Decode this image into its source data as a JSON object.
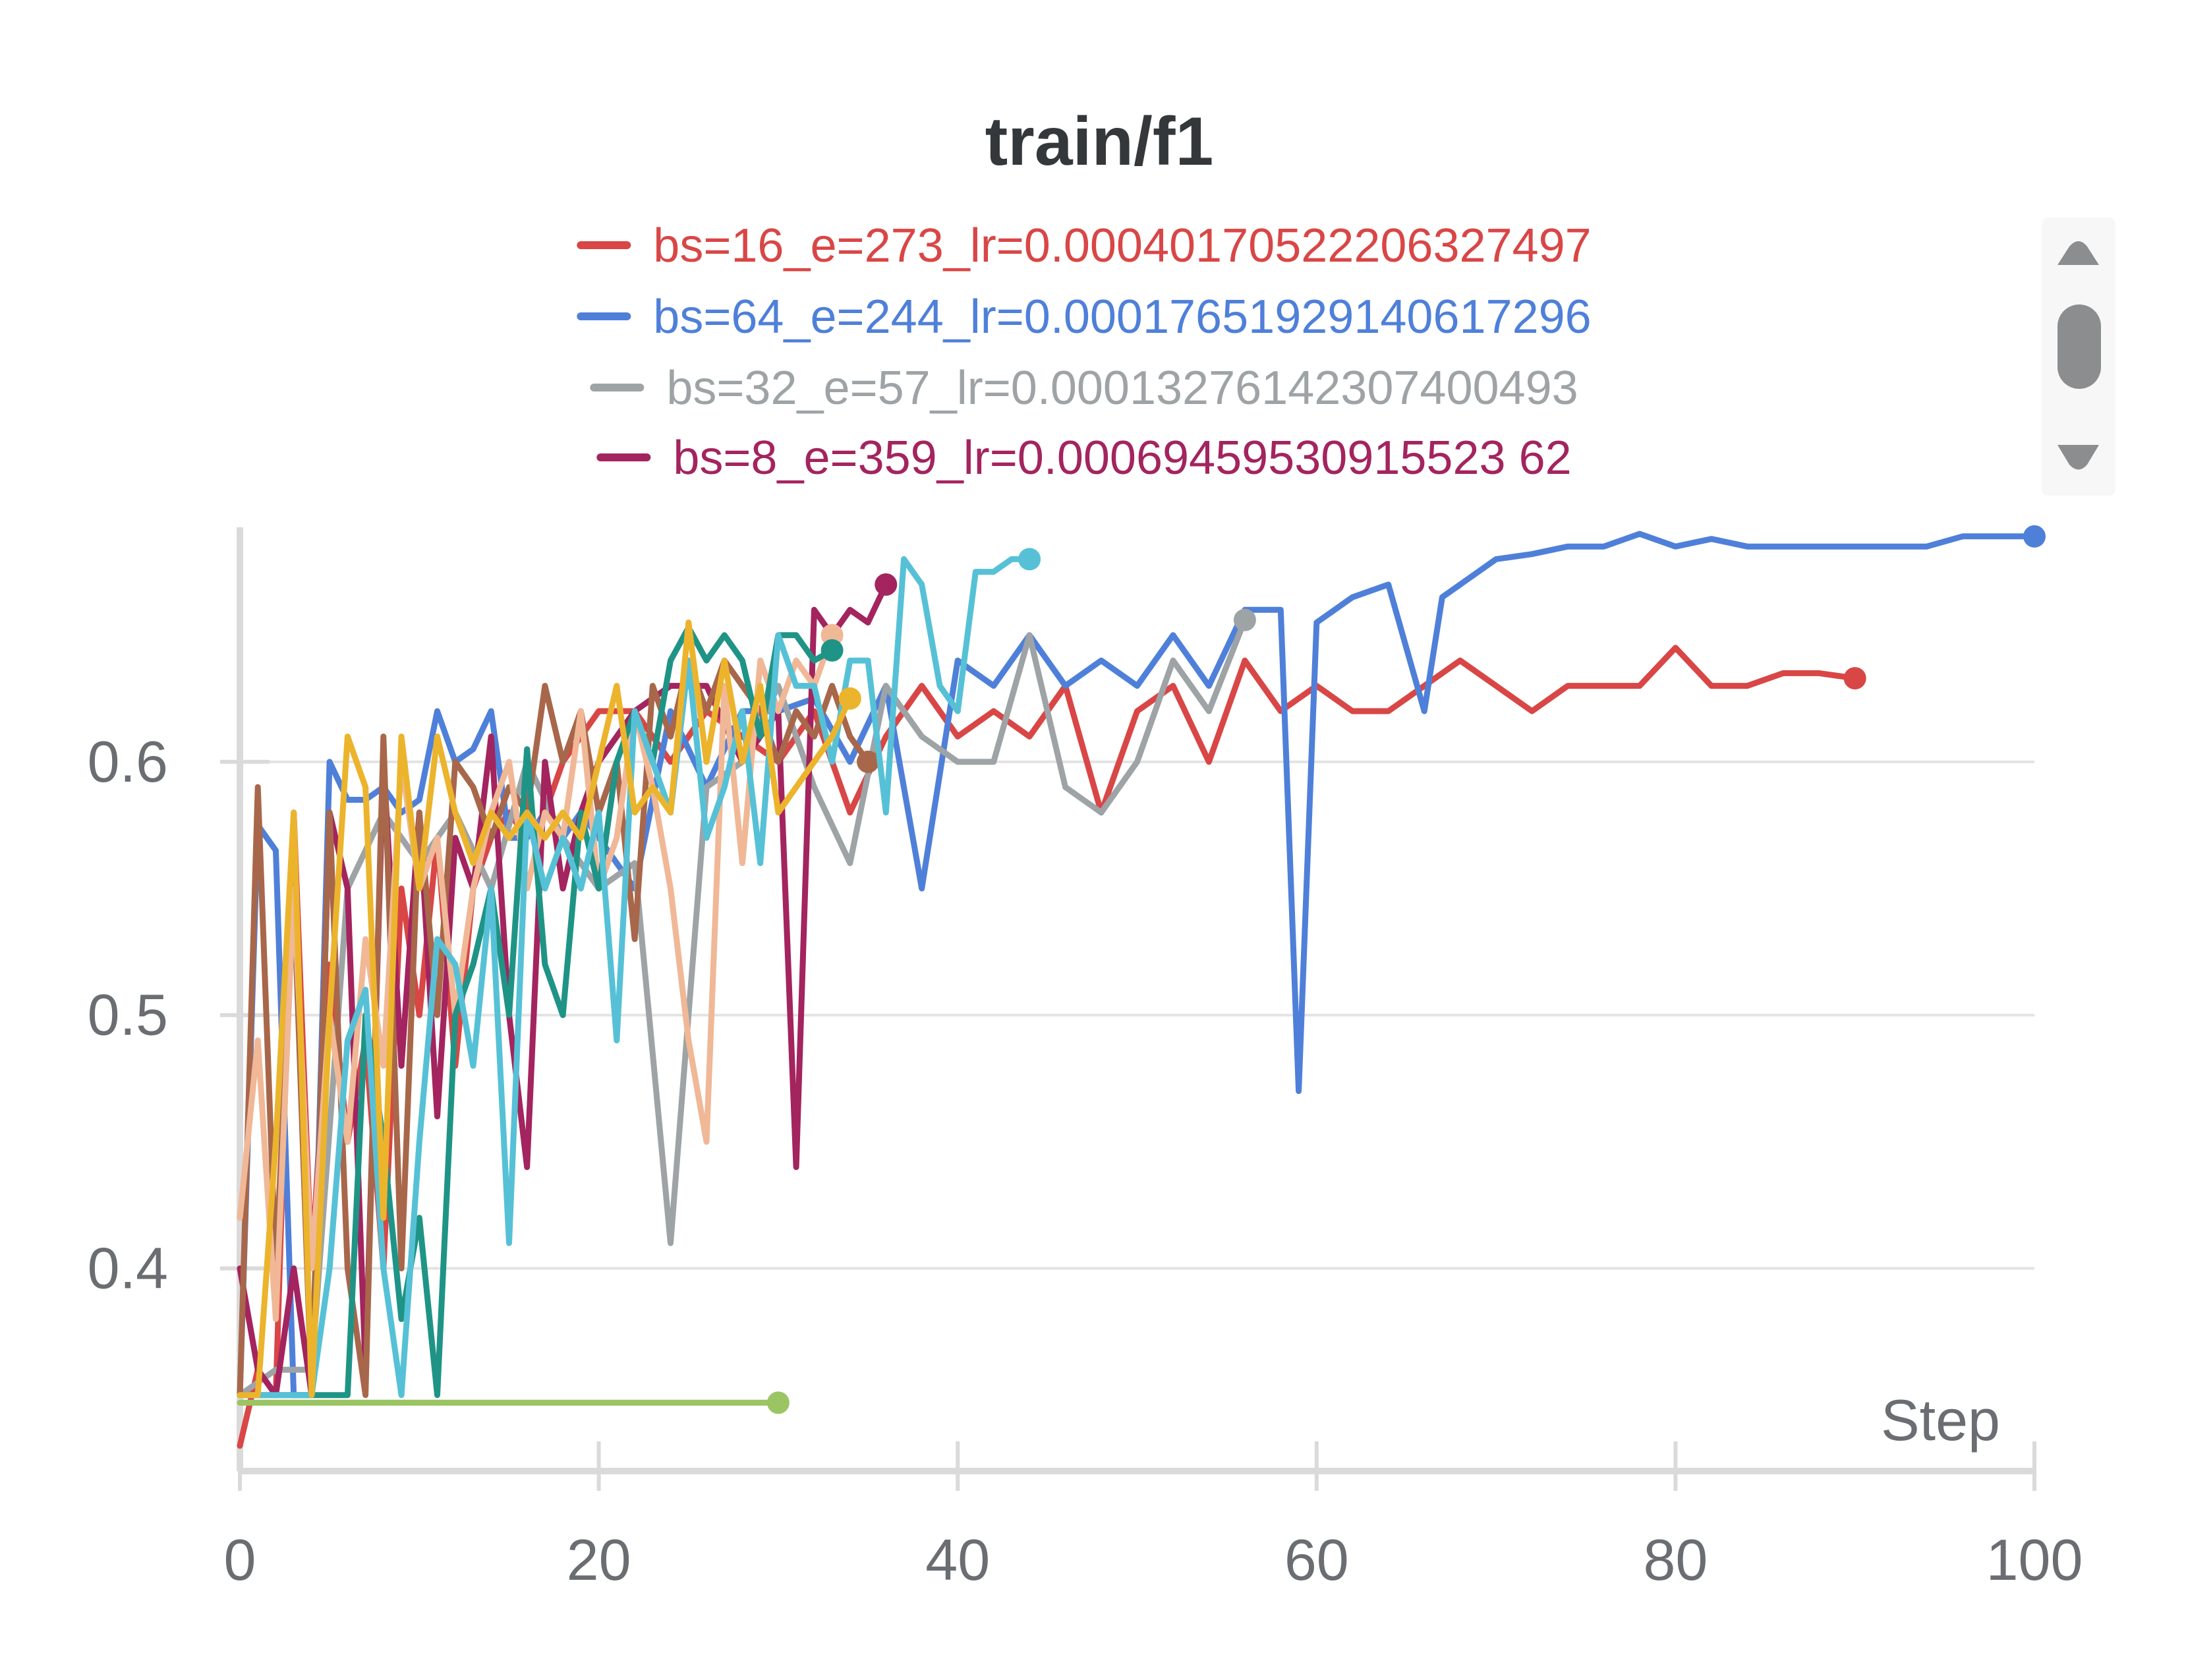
{
  "chart_data": {
    "type": "line",
    "title": "train/f1",
    "xlabel": "Step",
    "ylabel": "",
    "xlim": [
      0,
      100
    ],
    "ylim": [
      0.32,
      0.69
    ],
    "x_ticks": [
      "0",
      "20",
      "40",
      "60",
      "80",
      "100"
    ],
    "x_tick_values": [
      0,
      20,
      40,
      60,
      80,
      100
    ],
    "y_ticks": [
      "0.4",
      "0.5",
      "0.6"
    ],
    "y_tick_values": [
      0.4,
      0.5,
      0.6
    ],
    "grid": "horizontal",
    "legend_position": "top",
    "legend": [
      {
        "label": "bs=16_e=273_lr=0.0004017052220632749​7",
        "color": "#d94646"
      },
      {
        "label": "bs=64_e=244_lr=0.00017651929140617296",
        "color": "#4f80d9"
      },
      {
        "label": "bs=32_e=57_lr=0.00013276142307400493",
        "color": "#9ea3a6"
      },
      {
        "label": "bs=8_e=359_lr=0.00069459530915523 62",
        "color": "#a3245e"
      }
    ],
    "series": [
      {
        "name": "bs=16_e=273_lr=0.00040170522206327497",
        "color": "#d94646",
        "x": [
          0,
          1,
          2,
          3,
          4,
          5,
          6,
          7,
          8,
          9,
          10,
          11,
          12,
          13,
          14,
          15,
          16,
          17,
          18,
          19,
          20,
          22,
          24,
          26,
          28,
          30,
          32,
          34,
          36,
          38,
          40,
          42,
          44,
          46,
          48,
          50,
          52,
          54,
          56,
          58,
          60,
          62,
          64,
          66,
          68,
          70,
          72,
          74,
          76,
          78,
          80,
          82,
          84,
          86,
          88,
          90
        ],
        "y": [
          0.33,
          0.36,
          0.35,
          0.58,
          0.4,
          0.52,
          0.45,
          0.49,
          0.4,
          0.55,
          0.5,
          0.57,
          0.48,
          0.55,
          0.57,
          0.58,
          0.57,
          0.58,
          0.6,
          0.61,
          0.62,
          0.62,
          0.6,
          0.62,
          0.61,
          0.6,
          0.62,
          0.58,
          0.61,
          0.63,
          0.61,
          0.62,
          0.61,
          0.63,
          0.58,
          0.62,
          0.63,
          0.6,
          0.64,
          0.62,
          0.63,
          0.62,
          0.62,
          0.63,
          0.64,
          0.63,
          0.62,
          0.63,
          0.63,
          0.63,
          0.645,
          0.63,
          0.63,
          0.635,
          0.635,
          0.633
        ]
      },
      {
        "name": "bs=64_e=244_lr=0.00017651929140617296",
        "color": "#4f80d9",
        "x": [
          0,
          1,
          2,
          3,
          4,
          5,
          6,
          7,
          8,
          9,
          10,
          11,
          12,
          13,
          14,
          15,
          16,
          17,
          18,
          19,
          20,
          22,
          24,
          26,
          28,
          30,
          32,
          34,
          36,
          38,
          40,
          42,
          44,
          46,
          48,
          50,
          52,
          54,
          56,
          57,
          58,
          59,
          60,
          62,
          64,
          66,
          67,
          68,
          70,
          72,
          74,
          76,
          78,
          80,
          82,
          84,
          86,
          88,
          90,
          92,
          94,
          96,
          98,
          100
        ],
        "y": [
          0.35,
          0.575,
          0.565,
          0.35,
          0.35,
          0.6,
          0.585,
          0.585,
          0.59,
          0.58,
          0.585,
          0.62,
          0.6,
          0.605,
          0.62,
          0.57,
          0.57,
          0.58,
          0.57,
          0.58,
          0.57,
          0.55,
          0.62,
          0.59,
          0.62,
          0.62,
          0.625,
          0.6,
          0.63,
          0.55,
          0.64,
          0.63,
          0.65,
          0.63,
          0.64,
          0.63,
          0.65,
          0.63,
          0.66,
          0.66,
          0.66,
          0.47,
          0.655,
          0.665,
          0.67,
          0.62,
          0.665,
          0.67,
          0.68,
          0.682,
          0.685,
          0.685,
          0.69,
          0.685,
          0.688,
          0.685,
          0.685,
          0.685,
          0.685,
          0.685,
          0.685,
          0.689,
          0.689,
          0.689
        ]
      },
      {
        "name": "bs=32_e=57_lr=0.00013276142307400493",
        "color": "#9ea3a6",
        "x": [
          0,
          2,
          4,
          6,
          8,
          10,
          12,
          14,
          16,
          18,
          20,
          22,
          24,
          26,
          28,
          30,
          32,
          34,
          36,
          38,
          40,
          42,
          44,
          46,
          48,
          50,
          52,
          54,
          56
        ],
        "y": [
          0.35,
          0.36,
          0.36,
          0.55,
          0.58,
          0.56,
          0.58,
          0.55,
          0.6,
          0.57,
          0.55,
          0.56,
          0.41,
          0.59,
          0.6,
          0.63,
          0.59,
          0.56,
          0.63,
          0.61,
          0.6,
          0.6,
          0.65,
          0.59,
          0.58,
          0.6,
          0.64,
          0.62,
          0.656
        ]
      },
      {
        "name": "bs=8_e=359_lr=0.00069459530915523 62",
        "color": "#a3245e",
        "x": [
          0,
          1,
          2,
          3,
          4,
          5,
          6,
          7,
          8,
          9,
          10,
          11,
          12,
          13,
          14,
          15,
          16,
          17,
          18,
          19,
          20,
          22,
          24,
          26,
          28,
          30,
          31,
          32,
          33,
          34,
          35,
          36
        ],
        "y": [
          0.4,
          0.36,
          0.35,
          0.4,
          0.35,
          0.58,
          0.55,
          0.36,
          0.6,
          0.48,
          0.58,
          0.46,
          0.57,
          0.55,
          0.61,
          0.5,
          0.44,
          0.6,
          0.55,
          0.58,
          0.6,
          0.62,
          0.63,
          0.63,
          0.6,
          0.62,
          0.44,
          0.66,
          0.65,
          0.66,
          0.655,
          0.67
        ]
      },
      {
        "name": "",
        "color": "#a8674a",
        "x": [
          0,
          1,
          2,
          3,
          4,
          5,
          6,
          7,
          8,
          9,
          10,
          11,
          12,
          13,
          14,
          15,
          16,
          17,
          18,
          19,
          20,
          21,
          22,
          23,
          24,
          25,
          26,
          27,
          28,
          29,
          30,
          31,
          32,
          33,
          34,
          35
        ],
        "y": [
          0.35,
          0.59,
          0.4,
          0.55,
          0.35,
          0.58,
          0.4,
          0.35,
          0.61,
          0.4,
          0.58,
          0.5,
          0.6,
          0.59,
          0.57,
          0.59,
          0.58,
          0.63,
          0.6,
          0.62,
          0.58,
          0.6,
          0.53,
          0.63,
          0.61,
          0.64,
          0.62,
          0.64,
          0.63,
          0.62,
          0.6,
          0.62,
          0.61,
          0.63,
          0.61,
          0.6
        ]
      },
      {
        "name": "",
        "color": "#f0b896",
        "x": [
          0,
          1,
          2,
          3,
          4,
          5,
          6,
          7,
          8,
          9,
          10,
          11,
          12,
          13,
          14,
          15,
          16,
          17,
          18,
          19,
          20,
          21,
          22,
          23,
          24,
          25,
          26,
          27,
          28,
          29,
          30,
          31,
          32,
          33
        ],
        "y": [
          0.42,
          0.49,
          0.38,
          0.55,
          0.4,
          0.5,
          0.45,
          0.53,
          0.48,
          0.6,
          0.55,
          0.57,
          0.5,
          0.55,
          0.58,
          0.6,
          0.55,
          0.58,
          0.57,
          0.62,
          0.55,
          0.57,
          0.62,
          0.59,
          0.55,
          0.49,
          0.45,
          0.63,
          0.56,
          0.64,
          0.62,
          0.64,
          0.63,
          0.65
        ]
      },
      {
        "name": "",
        "color": "#1f9486",
        "x": [
          0,
          1,
          2,
          3,
          4,
          5,
          6,
          7,
          8,
          9,
          10,
          11,
          12,
          13,
          14,
          15,
          16,
          17,
          18,
          19,
          20,
          21,
          22,
          23,
          24,
          25,
          26,
          27,
          28,
          29,
          30,
          31,
          32,
          33
        ],
        "y": [
          0.35,
          0.35,
          0.35,
          0.35,
          0.35,
          0.35,
          0.35,
          0.5,
          0.45,
          0.38,
          0.42,
          0.35,
          0.5,
          0.52,
          0.55,
          0.5,
          0.605,
          0.52,
          0.5,
          0.58,
          0.55,
          0.6,
          0.62,
          0.6,
          0.64,
          0.653,
          0.64,
          0.65,
          0.64,
          0.61,
          0.65,
          0.65,
          0.64,
          0.644
        ]
      },
      {
        "name": "",
        "color": "#56c1d6",
        "x": [
          0,
          1,
          2,
          3,
          4,
          5,
          6,
          7,
          8,
          9,
          10,
          11,
          12,
          13,
          14,
          15,
          16,
          17,
          18,
          19,
          20,
          21,
          22,
          23,
          24,
          25,
          26,
          27,
          28,
          29,
          30,
          31,
          32,
          33,
          34,
          35,
          36,
          37,
          38,
          39,
          40,
          41,
          42,
          43,
          44
        ],
        "y": [
          0.35,
          0.35,
          0.35,
          0.35,
          0.35,
          0.4,
          0.49,
          0.51,
          0.4,
          0.35,
          0.45,
          0.53,
          0.52,
          0.48,
          0.55,
          0.41,
          0.58,
          0.55,
          0.57,
          0.55,
          0.58,
          0.49,
          0.62,
          0.6,
          0.58,
          0.64,
          0.57,
          0.59,
          0.62,
          0.56,
          0.65,
          0.63,
          0.63,
          0.6,
          0.64,
          0.64,
          0.58,
          0.68,
          0.67,
          0.63,
          0.62,
          0.675,
          0.675,
          0.68,
          0.68
        ]
      },
      {
        "name": "",
        "color": "#ecb42c",
        "x": [
          0,
          1,
          2,
          3,
          4,
          5,
          6,
          7,
          8,
          9,
          10,
          11,
          12,
          13,
          14,
          15,
          16,
          17,
          18,
          19,
          20,
          21,
          22,
          23,
          24,
          25,
          26,
          27,
          28,
          29,
          30,
          31,
          32,
          33,
          34
        ],
        "y": [
          0.35,
          0.35,
          0.45,
          0.58,
          0.35,
          0.5,
          0.61,
          0.59,
          0.42,
          0.61,
          0.55,
          0.61,
          0.58,
          0.56,
          0.58,
          0.57,
          0.58,
          0.57,
          0.58,
          0.57,
          0.6,
          0.63,
          0.58,
          0.59,
          0.58,
          0.655,
          0.6,
          0.64,
          0.6,
          0.63,
          0.58,
          0.59,
          0.6,
          0.61,
          0.625
        ]
      },
      {
        "name": "",
        "color": "#9bc463",
        "x": [
          0,
          5,
          10,
          15,
          20,
          25,
          30
        ],
        "y": [
          0.347,
          0.347,
          0.347,
          0.347,
          0.347,
          0.347,
          0.347
        ]
      }
    ]
  }
}
